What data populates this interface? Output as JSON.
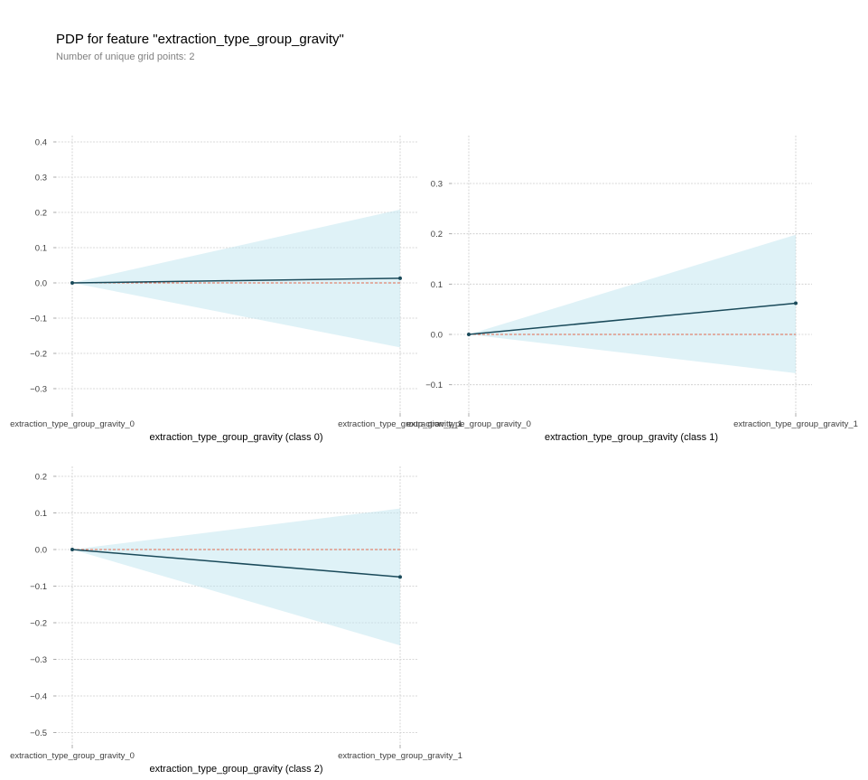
{
  "figure": {
    "title": "PDP for feature \"extraction_type_group_gravity\"",
    "subtitle": "Number of unique grid points: 2"
  },
  "colors": {
    "line": "#1a4a5a",
    "band": "#bfe6ef",
    "zero_line": "#e06a4f",
    "grid": "#cccccc",
    "marker": "#1a4a5a"
  },
  "chart_data": [
    {
      "type": "line",
      "name": "class 0",
      "xlabel": "extraction_type_group_gravity (class 0)",
      "categories": [
        "extraction_type_group_gravity_0",
        "extraction_type_group_gravity_1"
      ],
      "values": [
        0.0,
        0.013
      ],
      "band_upper": [
        0.0,
        0.208
      ],
      "band_lower": [
        0.0,
        -0.183
      ],
      "ylim": [
        -0.36,
        0.42
      ],
      "yticks": [
        -0.3,
        -0.2,
        -0.1,
        0.0,
        0.1,
        0.2,
        0.3,
        0.4
      ],
      "ytick_labels": [
        "−0.3",
        "−0.2",
        "−0.1",
        "0.0",
        "0.1",
        "0.2",
        "0.3",
        "0.4"
      ],
      "grid": true
    },
    {
      "type": "line",
      "name": "class 1",
      "xlabel": "extraction_type_group_gravity (class 1)",
      "categories": [
        "extraction_type_group_gravity_0",
        "extraction_type_group_gravity_1"
      ],
      "values": [
        0.0,
        0.062
      ],
      "band_upper": [
        0.0,
        0.198
      ],
      "band_lower": [
        0.0,
        -0.077
      ],
      "ylim": [
        -0.15,
        0.39
      ],
      "yticks": [
        -0.1,
        0.0,
        0.1,
        0.2,
        0.3
      ],
      "ytick_labels": [
        "−0.1",
        "0.0",
        "0.1",
        "0.2",
        "0.3"
      ],
      "grid": true
    },
    {
      "type": "line",
      "name": "class 2",
      "xlabel": "extraction_type_group_gravity (class 2)",
      "categories": [
        "extraction_type_group_gravity_0",
        "extraction_type_group_gravity_1"
      ],
      "values": [
        0.0,
        -0.075
      ],
      "band_upper": [
        0.0,
        0.112
      ],
      "band_lower": [
        0.0,
        -0.262
      ],
      "ylim": [
        -0.56,
        0.23
      ],
      "yticks": [
        -0.5,
        -0.4,
        -0.3,
        -0.2,
        -0.1,
        0.0,
        0.1,
        0.2
      ],
      "ytick_labels": [
        "−0.5",
        "−0.4",
        "−0.3",
        "−0.2",
        "−0.1",
        "0.0",
        "0.1",
        "0.2"
      ],
      "grid": true
    }
  ]
}
